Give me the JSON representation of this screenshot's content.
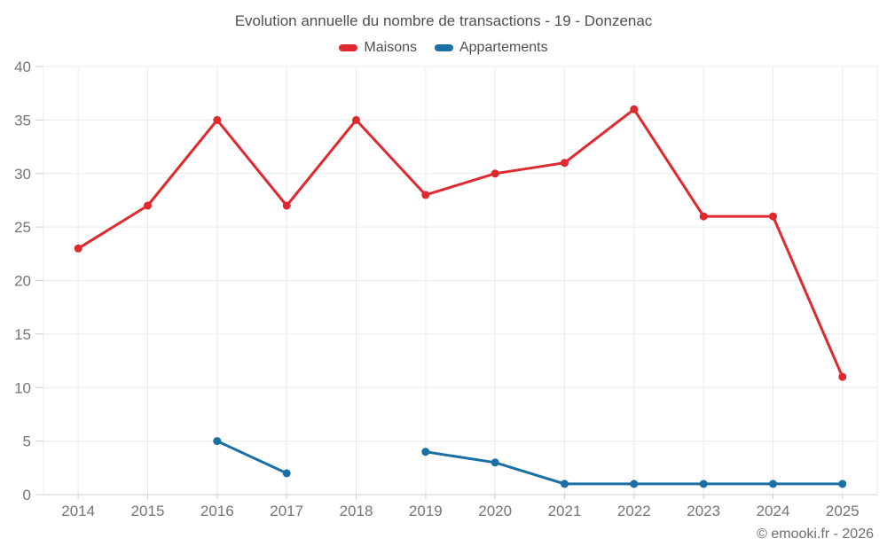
{
  "chart_data": {
    "type": "line",
    "title": "Evolution annuelle du nombre de transactions - 19 - Donzenac",
    "categories": [
      "2014",
      "2015",
      "2016",
      "2017",
      "2018",
      "2019",
      "2020",
      "2021",
      "2022",
      "2023",
      "2024",
      "2025"
    ],
    "series": [
      {
        "name": "Maisons",
        "color": "#e0282f",
        "values": [
          23,
          27,
          35,
          27,
          35,
          28,
          30,
          31,
          36,
          26,
          26,
          11
        ]
      },
      {
        "name": "Appartements",
        "color": "#1a6fa4",
        "values": [
          null,
          null,
          5,
          2,
          null,
          4,
          3,
          1,
          1,
          1,
          1,
          1
        ]
      }
    ],
    "ylim": [
      0,
      40
    ],
    "yticks": [
      0,
      5,
      10,
      15,
      20,
      25,
      30,
      35,
      40
    ],
    "grid": true,
    "legend_position": "top"
  },
  "footer": {
    "copyright": "© emooki.fr - 2026"
  },
  "colors": {
    "background": "#ffffff",
    "gridline": "#ececec",
    "axis_line": "#cccccc",
    "tick_label": "#757575",
    "title_text": "#4f4f4f"
  }
}
